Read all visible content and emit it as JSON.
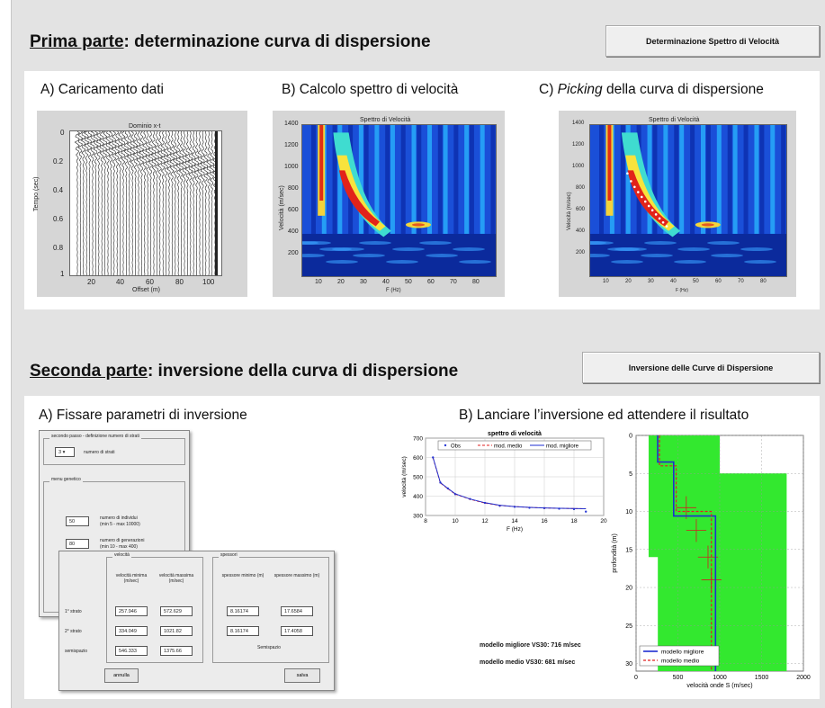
{
  "part1": {
    "title_underlined": "Prima parte",
    "title_rest": ": determinazione curva di dispersione",
    "button": "Determinazione Spettro di Velocità",
    "panelA": {
      "label": "A) Caricamento dati",
      "plot_title": "Dominio x-t",
      "ylabel": "Tempo (sec)",
      "xlabel": "Offset (m)",
      "yticks": [
        "0",
        "0.2",
        "0.4",
        "0.6",
        "0.8",
        "1"
      ],
      "xticks": [
        "20",
        "40",
        "60",
        "80",
        "100"
      ]
    },
    "panelB": {
      "label": "B) Calcolo spettro di velocità",
      "plot_title": "Spettro di Velocità",
      "ylabel": "Velocità (m/sec)",
      "xlabel": "F (Hz)",
      "yticks": [
        "1400",
        "1200",
        "1000",
        "800",
        "600",
        "400",
        "200"
      ],
      "xticks": [
        "10",
        "20",
        "30",
        "40",
        "50",
        "60",
        "70",
        "80"
      ]
    },
    "panelC": {
      "label_prefix": "C) ",
      "label_italic": "Picking",
      "label_rest": " della curva di dispersione",
      "plot_title": "Spettro di Velocità",
      "ylabel": "Velocità (m/sec)",
      "xlabel": "F (Hz)",
      "yticks": [
        "1400",
        "1200",
        "1000",
        "800",
        "600",
        "400",
        "200"
      ],
      "xticks": [
        "10",
        "20",
        "30",
        "40",
        "50",
        "60",
        "70",
        "80"
      ]
    }
  },
  "part2": {
    "title_underlined": "Seconda parte",
    "title_rest": ": inversione della curva di dispersione",
    "button": "Inversione delle Curve di Dispersione",
    "panelA": {
      "label": "A) Fissare parametri di inversione",
      "dlg1": {
        "group1_title": "secondo passo - definizione numero di strati",
        "strati_value": "3",
        "strati_label": "numero di strati",
        "group2_title": "menu genetico",
        "ind_value": "50",
        "ind_label_1": "numero di individui",
        "ind_label_2": "(min 5 - max 10000)",
        "gen_value": "80",
        "gen_label_1": "numero di generazioni",
        "gen_label_2": "(min 10 - max 400)"
      },
      "dlg2": {
        "group_vel_title": "velocità",
        "group_spes_title": "spessori",
        "col_headers": [
          "velocità minima (m/sec)",
          "velocità massima (m/sec)",
          "spessore minimo (m)",
          "spessore massimo (m)"
        ],
        "rows": [
          {
            "label": "1° strato",
            "values": [
              "257.946",
              "572.629",
              "8.16174",
              "17.6584"
            ]
          },
          {
            "label": "2° strato",
            "values": [
              "334.049",
              "1021.82",
              "8.16174",
              "17.4058"
            ]
          },
          {
            "label": "semispazio",
            "values": [
              "546.333",
              "1375.66"
            ],
            "note": "Semispazio"
          }
        ],
        "btn_left": "annulla",
        "btn_right": "salva"
      }
    },
    "panelB": {
      "label": "B) Lanciare l’inversione ed attendere il risultato",
      "summary_1": "modello migliore VS30: 716 m/sec",
      "summary_2": "modello medio VS30: 681 m/sec"
    }
  },
  "chart_data": [
    {
      "type": "line",
      "title": "spettro di velocità",
      "xlabel": "F (Hz)",
      "ylabel": "velocità (m/sec)",
      "xlim": [
        8,
        20
      ],
      "ylim": [
        300,
        700
      ],
      "xticks": [
        8,
        10,
        12,
        14,
        16,
        18,
        20
      ],
      "yticks": [
        300,
        400,
        500,
        600,
        700
      ],
      "legend_position": "top",
      "series": [
        {
          "name": "Obs",
          "color": "#2b3bd6",
          "x": [
            8.5,
            9.0,
            9.5,
            10.0,
            11.0,
            12.0,
            13.0,
            14.0,
            15.0,
            16.0,
            17.0,
            18.0,
            18.8
          ],
          "y": [
            600,
            470,
            440,
            410,
            385,
            365,
            350,
            345,
            340,
            338,
            335,
            333,
            320
          ]
        },
        {
          "name": "mod. medio",
          "color": "#e02020",
          "x": [
            8.5,
            9.0,
            9.5,
            10.0,
            11.0,
            12.0,
            13.0,
            14.0,
            15.0,
            16.0,
            17.0,
            18.0,
            18.8
          ],
          "y": [
            598,
            468,
            438,
            410,
            384,
            364,
            352,
            346,
            342,
            339,
            337,
            336,
            335
          ]
        },
        {
          "name": "mod. migliore",
          "color": "#1f2fd0",
          "x": [
            8.5,
            9.0,
            9.5,
            10.0,
            11.0,
            12.0,
            13.0,
            14.0,
            15.0,
            16.0,
            17.0,
            18.0,
            18.8
          ],
          "y": [
            600,
            470,
            440,
            412,
            385,
            366,
            353,
            346,
            342,
            339,
            337,
            336,
            335
          ]
        }
      ]
    },
    {
      "type": "line",
      "xlabel": "velocità onde S (m/sec)",
      "ylabel": "profondità (m)",
      "xlim": [
        0,
        2000
      ],
      "ylim": [
        0,
        31
      ],
      "xticks": [
        0,
        500,
        1000,
        1500,
        2000
      ],
      "yticks": [
        0,
        5,
        10,
        15,
        20,
        25,
        30
      ],
      "legend_position": "bottom-left",
      "envelope_color": "#33e82f",
      "series": [
        {
          "name": "modello migliore",
          "color": "#1f2fd0",
          "velocity": [
            258,
            258,
            450,
            450,
            950,
            950
          ],
          "depth": [
            0,
            3.5,
            3.5,
            10.6,
            10.6,
            31
          ]
        },
        {
          "name": "modello medio",
          "color": "#e02020",
          "velocity": [
            280,
            280,
            480,
            480,
            900,
            900
          ],
          "depth": [
            0,
            4,
            4,
            10,
            10,
            31
          ]
        }
      ]
    }
  ]
}
